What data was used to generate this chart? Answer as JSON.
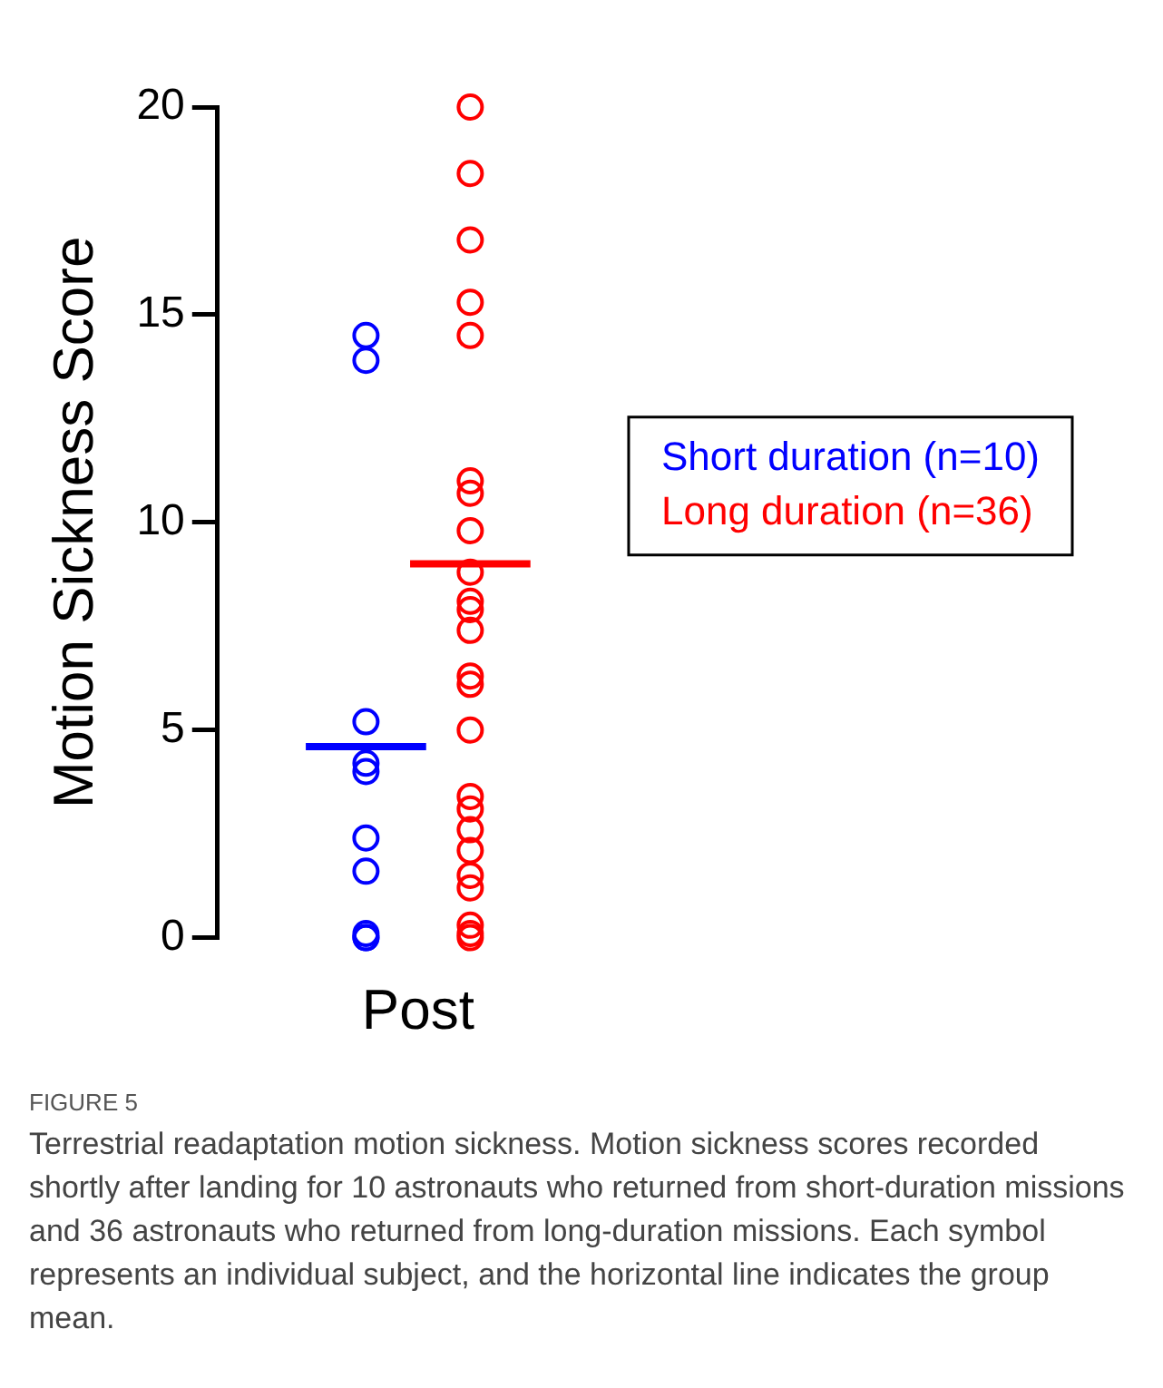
{
  "chart_data": {
    "type": "scatter",
    "ylabel": "Motion Sickness Score",
    "categories": [
      "Post"
    ],
    "ylim": [
      0,
      20
    ],
    "yticks": [
      0,
      5,
      10,
      15,
      20
    ],
    "grid": false,
    "marker": "circle",
    "series": [
      {
        "name": "Short duration (n=10)",
        "color": "#0000ff",
        "x": [
          "Post",
          "Post",
          "Post",
          "Post",
          "Post",
          "Post",
          "Post",
          "Post",
          "Post",
          "Post"
        ],
        "values": [
          14.5,
          13.9,
          5.2,
          4.2,
          4.0,
          2.4,
          1.6,
          0.1,
          0,
          0
        ]
      },
      {
        "name": "Long duration (n=36)",
        "color": "#ff0000",
        "x": [
          "Post",
          "Post",
          "Post",
          "Post",
          "Post",
          "Post",
          "Post",
          "Post",
          "Post",
          "Post",
          "Post",
          "Post",
          "Post",
          "Post",
          "Post",
          "Post",
          "Post",
          "Post",
          "Post",
          "Post",
          "Post",
          "Post",
          "Post",
          "Post"
        ],
        "values": [
          20,
          18.4,
          16.8,
          15.3,
          14.5,
          11.0,
          10.7,
          9.8,
          8.8,
          8.1,
          7.9,
          7.4,
          6.3,
          6.1,
          5.0,
          3.4,
          3.1,
          2.6,
          2.1,
          1.5,
          1.2,
          0.3,
          0.1,
          0
        ]
      }
    ],
    "ref_lines": [
      {
        "axis": "y",
        "value": 4.6,
        "color": "#0000ff"
      },
      {
        "axis": "y",
        "value": 9.0,
        "color": "#ff0000"
      }
    ],
    "annotations": [
      "FIGURE 5",
      "Terrestrial readaptation motion sickness. Motion sickness scores recorded shortly after landing for 10 astronauts who returned from short-duration missions and 36 astronauts who returned from long-duration missions. Each symbol represents an individual subject, and the horizontal line indicates the group mean."
    ]
  }
}
